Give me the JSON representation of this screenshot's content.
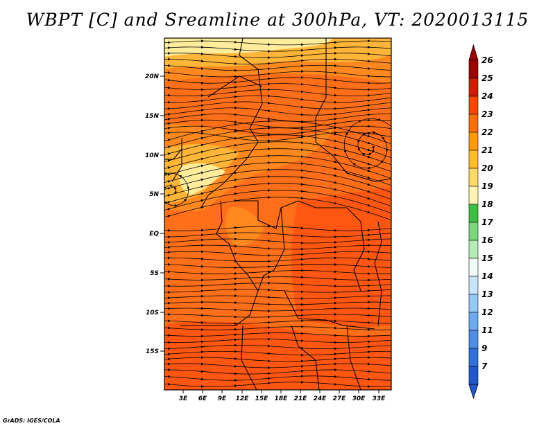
{
  "title": "WBPT [C] and Sreamline at 300hPa, VT: 2020013115",
  "credit": "GrADS: IGES/COLA",
  "map": {
    "lat_labels": [
      "20N",
      "15N",
      "10N",
      "5N",
      "EQ",
      "5S",
      "10S",
      "15S"
    ],
    "lon_labels": [
      "3E",
      "6E",
      "9E",
      "12E",
      "15E",
      "18E",
      "21E",
      "24E",
      "27E",
      "30E",
      "33E"
    ],
    "shading_colors": {
      "warm_dominant": "#ff6f1a",
      "warmer": "#ff5512",
      "mid": "#ff8a1f",
      "cool": "#ffb83a",
      "coolest": "#fff0a0"
    },
    "streamline_color": "#000000",
    "border_color": "#000000"
  },
  "colorbar": {
    "levels": [
      "26",
      "25",
      "24",
      "23",
      "22",
      "21",
      "20",
      "19",
      "18",
      "17",
      "16",
      "15",
      "14",
      "13",
      "12",
      "11",
      "9",
      "7"
    ],
    "colors": [
      "#a10000",
      "#d21c00",
      "#ff4600",
      "#ff6e00",
      "#ff9a00",
      "#ffbd2a",
      "#ffd966",
      "#fff5b0",
      "#3fbf3f",
      "#7bd77b",
      "#b3edb3",
      "#eefbf8",
      "#c6e5fb",
      "#94c8f5",
      "#6aaaf0",
      "#4d8ee6",
      "#2f71db",
      "#1f58cf"
    ],
    "top_arrow_color": "#a10000",
    "bottom_arrow_color": "#1f58cf"
  }
}
